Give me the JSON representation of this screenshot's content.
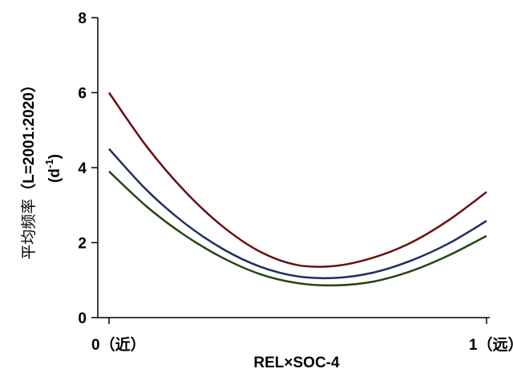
{
  "chart_data": {
    "type": "line",
    "xlabel": "REL×SOC-4",
    "ylabel": {
      "line1_cjk": "平均频率",
      "line1_paren": "（L=2001:2020）",
      "line2": "(d",
      "line2_sup": "-1",
      "line2_end": ")"
    },
    "xlim": [
      0,
      1
    ],
    "ylim": [
      0,
      8
    ],
    "x_ticks": [
      {
        "value": 0,
        "label": "0（近）"
      },
      {
        "value": 1,
        "label": "1（远）"
      }
    ],
    "y_ticks": [
      {
        "value": 0,
        "label": "0"
      },
      {
        "value": 2,
        "label": "2"
      },
      {
        "value": 4,
        "label": "4"
      },
      {
        "value": 6,
        "label": "6"
      },
      {
        "value": 8,
        "label": "8"
      }
    ],
    "grid": false,
    "series": [
      {
        "color": "#6b0f12",
        "x": [
          0,
          0.1,
          0.2,
          0.3,
          0.4,
          0.5,
          0.6,
          0.7,
          0.8,
          0.9,
          1.0
        ],
        "y": [
          6.0,
          4.56,
          3.38,
          2.44,
          1.76,
          1.4,
          1.38,
          1.6,
          2.0,
          2.6,
          3.35
        ]
      },
      {
        "color": "#1f2f5e",
        "x": [
          0,
          0.1,
          0.2,
          0.3,
          0.4,
          0.5,
          0.6,
          0.7,
          0.8,
          0.9,
          1.0
        ],
        "y": [
          4.5,
          3.4,
          2.52,
          1.84,
          1.36,
          1.1,
          1.06,
          1.2,
          1.52,
          1.98,
          2.58
        ]
      },
      {
        "color": "#244514",
        "x": [
          0,
          0.1,
          0.2,
          0.3,
          0.4,
          0.5,
          0.6,
          0.7,
          0.8,
          0.9,
          1.0
        ],
        "y": [
          3.9,
          2.96,
          2.2,
          1.6,
          1.16,
          0.92,
          0.86,
          0.96,
          1.24,
          1.66,
          2.18
        ]
      }
    ]
  }
}
